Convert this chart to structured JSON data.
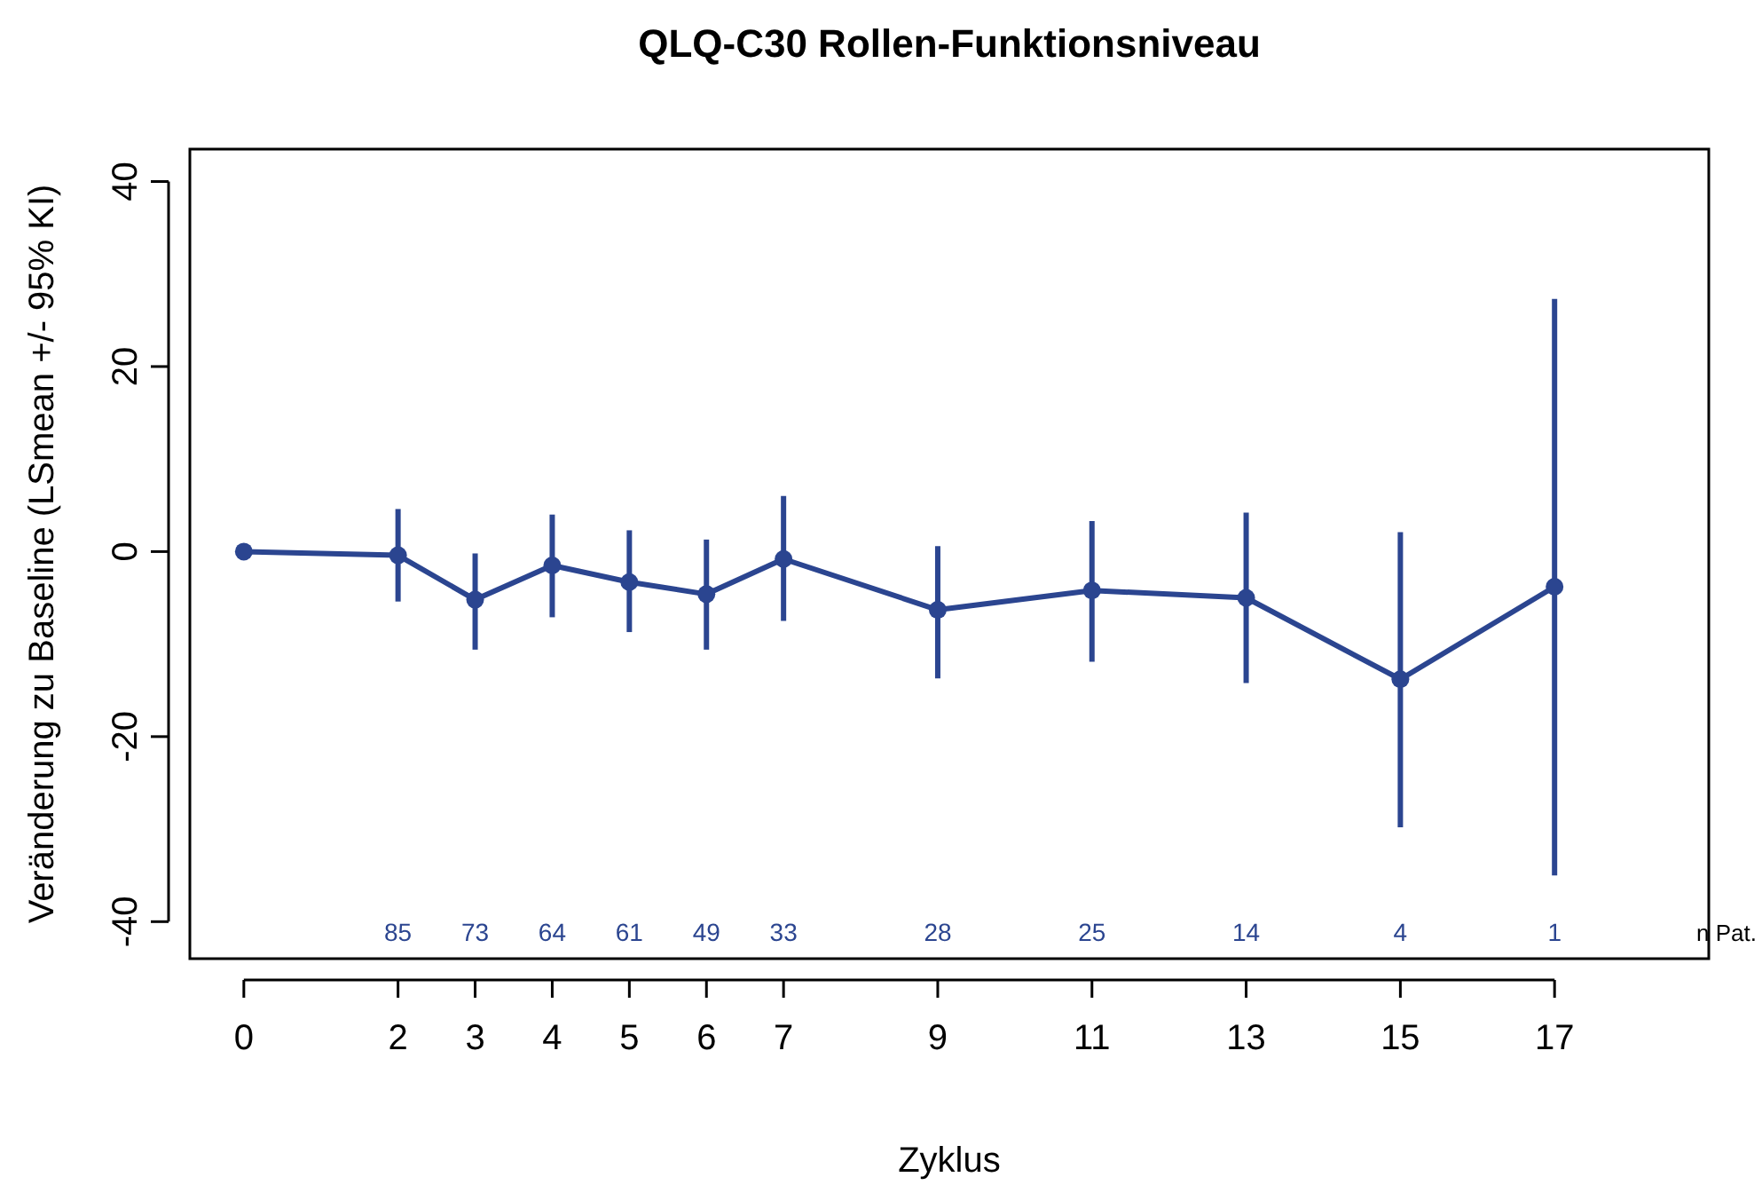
{
  "chart_data": {
    "type": "line",
    "title": "QLQ-C30 Rollen-Funktionsniveau",
    "xlabel": "Zyklus",
    "ylabel": "Veränderung zu Baseline (LSmean +/- 95% KI)",
    "x": [
      0,
      2,
      3,
      4,
      5,
      6,
      7,
      9,
      11,
      13,
      15,
      17
    ],
    "series": [
      {
        "color": "#2b4590",
        "values": [
          0,
          -0.4,
          -5.2,
          -1.5,
          -3.3,
          -4.6,
          -0.8,
          -6.3,
          -4.2,
          -5.0,
          -13.8,
          -3.8
        ],
        "errors": [
          null,
          [
            -5.4,
            4.6
          ],
          [
            -10.6,
            -0.2
          ],
          [
            -7.1,
            4.0
          ],
          [
            -8.7,
            2.3
          ],
          [
            -10.6,
            1.3
          ],
          [
            -7.5,
            6.0
          ],
          [
            -13.7,
            0.6
          ],
          [
            -11.9,
            3.3
          ],
          [
            -14.2,
            4.2
          ],
          [
            -29.8,
            2.1
          ],
          [
            -35.0,
            27.3
          ]
        ]
      }
    ],
    "xlim": [
      -0.7,
      19
    ],
    "ylim": [
      -44,
      43.5
    ],
    "xticks": [
      0,
      2,
      3,
      4,
      5,
      6,
      7,
      9,
      11,
      13,
      15,
      17
    ],
    "yticks": [
      -40,
      -20,
      0,
      20,
      40
    ],
    "grid": false,
    "marker": "circle",
    "line_style": "solid",
    "annotations": [
      "85",
      "73",
      "64",
      "61",
      "49",
      "33",
      "28",
      "25",
      "14",
      "4",
      "1",
      "n Pat."
    ]
  }
}
